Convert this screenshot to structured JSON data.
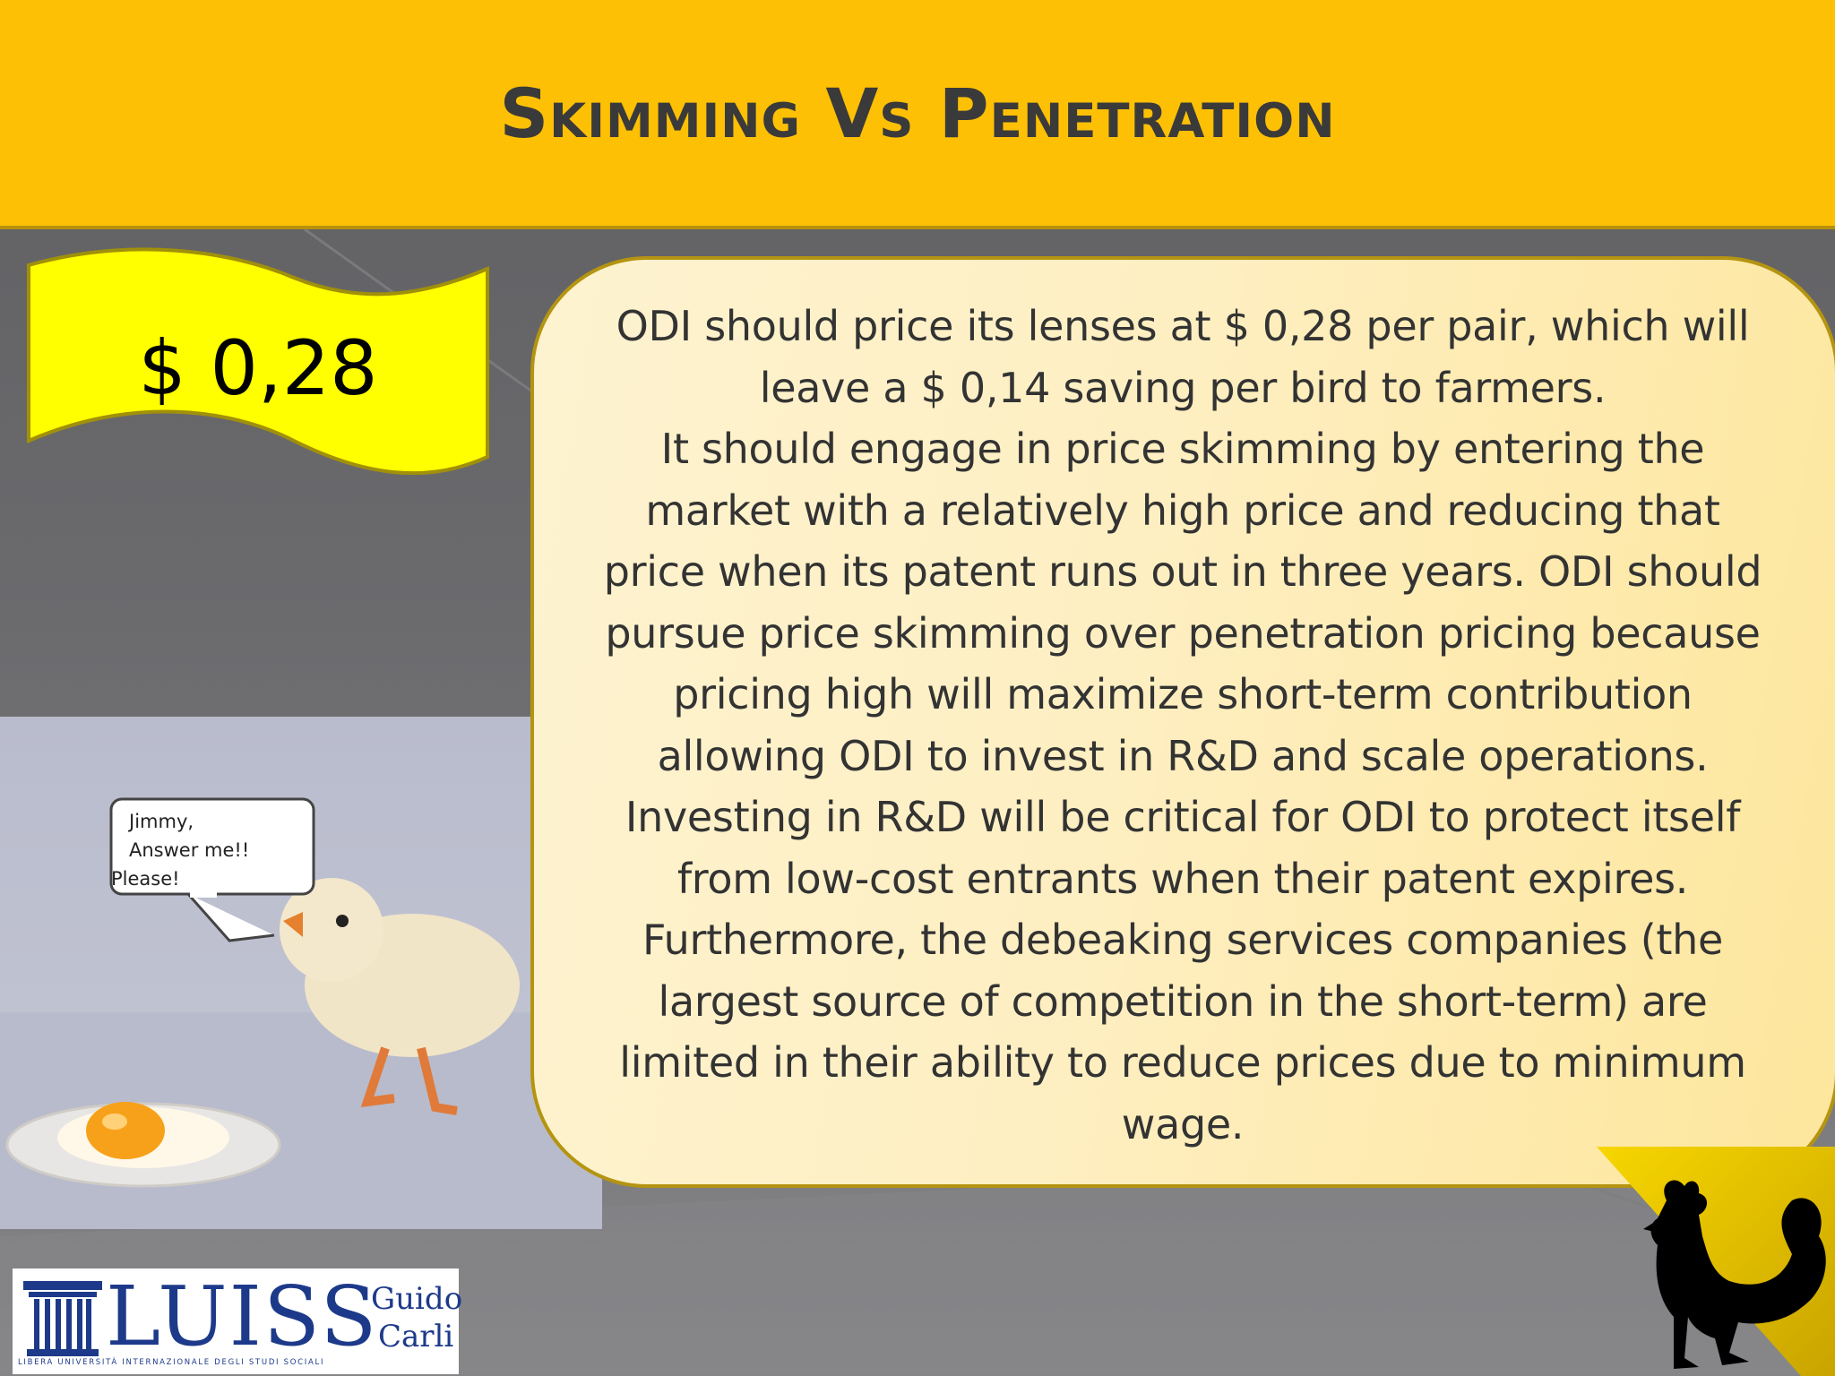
{
  "slide": {
    "title": "Skimming Vs Penetration",
    "price_tag": "$ 0,28",
    "body_lines": [
      "ODI should price its lenses at $ 0,28 per pair, which will",
      "leave a $ 0,14 saving per bird to farmers.",
      "It should engage in price skimming by entering the",
      "market with a relatively high price and reducing that",
      "price when its patent runs out in three years. ODI should",
      "pursue price skimming over penetration pricing because",
      "pricing high will maximize short-term contribution",
      "allowing ODI to invest in R&D and scale operations.",
      "Investing in R&D will be critical for ODI to protect itself",
      "from low-cost entrants when their patent expires.",
      "Furthermore, the debeaking services companies (the",
      "largest source of competition in the short-term) are",
      "limited in their ability to reduce prices due to minimum",
      "wage."
    ]
  },
  "photo": {
    "speech_line1": "Jimmy,",
    "speech_line2": "Answer me!!",
    "speech_line3": "Please!"
  },
  "logo": {
    "main": "LUISS",
    "guido": "Guido",
    "carli": "Carli",
    "subtitle": "LIBERA UNIVERSITÀ INTERNAZIONALE DEGLI STUDI SOCIALI"
  },
  "colors": {
    "header": "#fec004",
    "flag": "#ffff00",
    "text_box": "#fdefc4",
    "background": "#646467"
  }
}
